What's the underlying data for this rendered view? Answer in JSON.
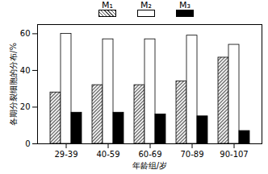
{
  "chart_data": {
    "type": "bar",
    "categories": [
      "29-39",
      "40-59",
      "60-69",
      "70-89",
      "90-107"
    ],
    "series": [
      {
        "name": "M₁",
        "color": "#555555",
        "values": [
          28,
          32,
          32,
          34,
          47
        ]
      },
      {
        "name": "M₂",
        "color": "#ffffff",
        "values": [
          60,
          57,
          57,
          59,
          54
        ]
      },
      {
        "name": "M₃",
        "color": "#000000",
        "values": [
          17,
          17,
          16,
          15,
          7
        ]
      }
    ],
    "x_label": "年龄组/岁",
    "y_label": "各期分裂细胞的分布/%",
    "ylim": [
      0,
      65
    ],
    "yticks": [
      0,
      20,
      40,
      60
    ],
    "grid": false,
    "legend": "top"
  }
}
